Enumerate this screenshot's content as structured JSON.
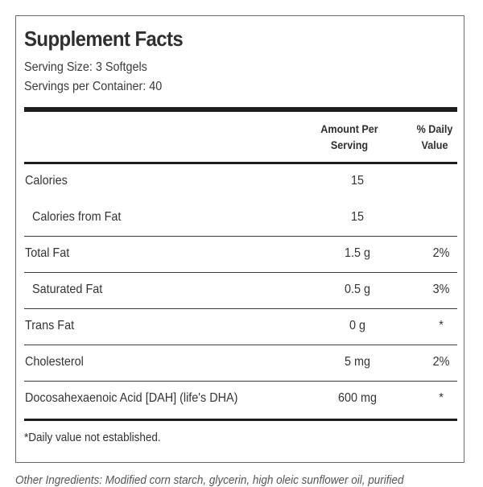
{
  "label": {
    "title": "Supplement Facts",
    "serving_size": "Serving Size: 3 Softgels",
    "servings_per_container": "Servings per Container: 40",
    "header_amount_line1": "Amount Per",
    "header_amount_line2": "Serving",
    "header_dv_line1": "% Daily",
    "header_dv_line2": "Value",
    "rows": [
      {
        "name": "Calories",
        "amount": "15",
        "dv": "",
        "indent": false
      },
      {
        "name": "Calories from Fat",
        "amount": "15",
        "dv": "",
        "indent": true
      },
      {
        "name": "Total Fat",
        "amount": "1.5 g",
        "dv": "2%",
        "indent": false
      },
      {
        "name": "Saturated Fat",
        "amount": "0.5 g",
        "dv": "3%",
        "indent": true
      },
      {
        "name": "Trans Fat",
        "amount": "0 g",
        "dv": "*",
        "indent": false
      },
      {
        "name": "Cholesterol",
        "amount": "5 mg",
        "dv": "2%",
        "indent": false
      },
      {
        "name": "Docosahexaenoic Acid [DAH] (life's DHA)",
        "amount": "600 mg",
        "dv": "*",
        "indent": false
      }
    ],
    "footnote": "*Daily value not established."
  },
  "below_label": {
    "cutoff_text": "Other Ingredients: Modified corn starch, glycerin, high oleic sunflower oil, purified"
  }
}
